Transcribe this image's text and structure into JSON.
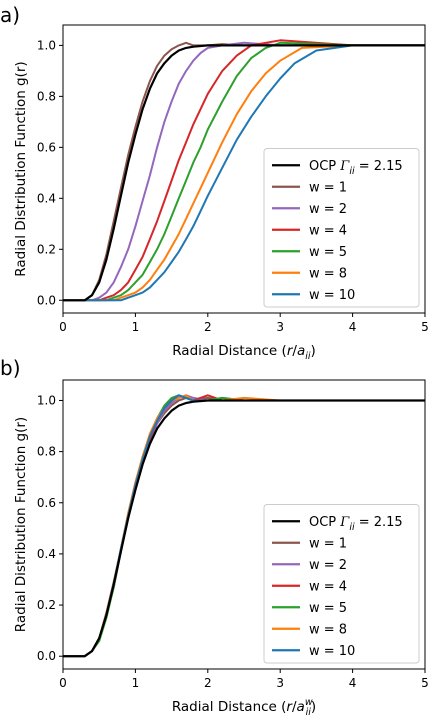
{
  "chart_data": [
    {
      "type": "line",
      "panel_label": "a)",
      "xlabel_prefix": "Radial Distance (",
      "xlabel_var": "r",
      "xlabel_slash": "/",
      "xlabel_a": "a",
      "xlabel_sub": "ii",
      "xlabel_sup": "",
      "xlabel_suffix": ")",
      "ylabel": "Radial Distribution Function g(r)",
      "xlim": [
        0,
        5
      ],
      "ylim": [
        -0.05,
        1.08
      ],
      "xticks": [
        "0",
        "1",
        "2",
        "3",
        "4",
        "5"
      ],
      "yticks": [
        "0.0",
        "0.2",
        "0.4",
        "0.6",
        "0.8",
        "1.0"
      ],
      "legend_position": "lower-right",
      "reference": {
        "name": "OCP",
        "gamma_symbol": "Γ",
        "gamma_sub": "ii",
        "gamma_value": "= 2.15",
        "color": "#000000",
        "x": [
          0,
          0.3,
          0.4,
          0.5,
          0.6,
          0.7,
          0.8,
          0.9,
          1.0,
          1.1,
          1.2,
          1.3,
          1.4,
          1.5,
          1.6,
          1.7,
          1.8,
          2.0,
          2.2,
          2.5,
          3.0,
          4.0,
          5.0
        ],
        "y": [
          0,
          0.0,
          0.02,
          0.07,
          0.16,
          0.28,
          0.41,
          0.54,
          0.65,
          0.75,
          0.83,
          0.89,
          0.93,
          0.96,
          0.98,
          0.99,
          0.995,
          1.0,
          1.0,
          1.0,
          1.0,
          1.0,
          1.0
        ]
      },
      "series": [
        {
          "name": "w = 1",
          "color": "#8c564b",
          "x": [
            0,
            0.3,
            0.4,
            0.5,
            0.6,
            0.7,
            0.8,
            0.9,
            1.0,
            1.1,
            1.2,
            1.3,
            1.4,
            1.5,
            1.6,
            1.7,
            1.8,
            2.0,
            2.2,
            2.5,
            3.0,
            4.0,
            5.0
          ],
          "y": [
            0,
            0.0,
            0.02,
            0.08,
            0.18,
            0.31,
            0.44,
            0.57,
            0.68,
            0.78,
            0.86,
            0.92,
            0.96,
            0.985,
            1.0,
            1.01,
            1.0,
            1.0,
            1.005,
            1.0,
            1.0,
            1.0,
            1.0
          ]
        },
        {
          "name": "w = 2",
          "color": "#9467bd",
          "x": [
            0,
            0.4,
            0.5,
            0.6,
            0.7,
            0.8,
            0.9,
            1.0,
            1.1,
            1.2,
            1.3,
            1.4,
            1.5,
            1.6,
            1.7,
            1.8,
            1.9,
            2.0,
            2.2,
            2.5,
            3.0,
            4.0,
            5.0
          ],
          "y": [
            0,
            0.0,
            0.01,
            0.03,
            0.07,
            0.13,
            0.2,
            0.29,
            0.39,
            0.49,
            0.6,
            0.7,
            0.78,
            0.85,
            0.9,
            0.94,
            0.97,
            0.99,
            1.0,
            1.01,
            1.0,
            1.0,
            1.0
          ]
        },
        {
          "name": "w = 4",
          "color": "#d62728",
          "x": [
            0,
            0.5,
            0.6,
            0.7,
            0.8,
            0.9,
            1.0,
            1.1,
            1.2,
            1.3,
            1.4,
            1.5,
            1.6,
            1.7,
            1.8,
            1.9,
            2.0,
            2.2,
            2.4,
            2.6,
            3.0,
            4.0,
            5.0
          ],
          "y": [
            0,
            0.0,
            0.01,
            0.02,
            0.04,
            0.07,
            0.12,
            0.17,
            0.24,
            0.31,
            0.39,
            0.47,
            0.55,
            0.62,
            0.69,
            0.75,
            0.81,
            0.9,
            0.96,
            1.0,
            1.02,
            1.0,
            1.0
          ]
        },
        {
          "name": "w = 5",
          "color": "#2ca02c",
          "x": [
            0,
            0.6,
            0.7,
            0.8,
            0.9,
            1.0,
            1.1,
            1.2,
            1.3,
            1.4,
            1.5,
            1.6,
            1.7,
            1.8,
            1.9,
            2.0,
            2.2,
            2.4,
            2.6,
            2.8,
            3.0,
            4.0,
            5.0
          ],
          "y": [
            0,
            0.0,
            0.01,
            0.02,
            0.04,
            0.07,
            0.1,
            0.15,
            0.2,
            0.26,
            0.33,
            0.4,
            0.47,
            0.54,
            0.6,
            0.67,
            0.78,
            0.88,
            0.95,
            0.99,
            1.01,
            1.0,
            1.0
          ]
        },
        {
          "name": "w = 8",
          "color": "#ff7f0e",
          "x": [
            0,
            0.7,
            0.8,
            0.9,
            1.0,
            1.1,
            1.2,
            1.3,
            1.4,
            1.5,
            1.6,
            1.7,
            1.8,
            1.9,
            2.0,
            2.2,
            2.4,
            2.6,
            2.8,
            3.0,
            3.3,
            4.0,
            5.0
          ],
          "y": [
            0,
            0.0,
            0.01,
            0.02,
            0.03,
            0.05,
            0.08,
            0.12,
            0.16,
            0.21,
            0.26,
            0.32,
            0.38,
            0.44,
            0.5,
            0.62,
            0.73,
            0.82,
            0.89,
            0.94,
            0.99,
            1.0,
            1.0
          ]
        },
        {
          "name": "w = 10",
          "color": "#1f77b4",
          "x": [
            0,
            0.8,
            0.9,
            1.0,
            1.1,
            1.2,
            1.3,
            1.4,
            1.5,
            1.6,
            1.7,
            1.8,
            1.9,
            2.0,
            2.2,
            2.4,
            2.6,
            2.8,
            3.0,
            3.2,
            3.5,
            4.0,
            5.0
          ],
          "y": [
            0,
            0.0,
            0.01,
            0.02,
            0.03,
            0.05,
            0.08,
            0.11,
            0.15,
            0.19,
            0.24,
            0.29,
            0.35,
            0.41,
            0.52,
            0.63,
            0.72,
            0.8,
            0.87,
            0.93,
            0.98,
            1.0,
            1.0
          ]
        }
      ]
    },
    {
      "type": "line",
      "panel_label": "b)",
      "xlabel_prefix": "Radial Distance (",
      "xlabel_var": "r",
      "xlabel_slash": "/",
      "xlabel_a": "a",
      "xlabel_sub": "ii",
      "xlabel_sup": "w",
      "xlabel_suffix": ")",
      "ylabel": "Radial Distribution Function g(r)",
      "xlim": [
        0,
        5
      ],
      "ylim": [
        -0.05,
        1.08
      ],
      "xticks": [
        "0",
        "1",
        "2",
        "3",
        "4",
        "5"
      ],
      "yticks": [
        "0.0",
        "0.2",
        "0.4",
        "0.6",
        "0.8",
        "1.0"
      ],
      "legend_position": "lower-right",
      "reference": {
        "name": "OCP",
        "gamma_symbol": "Γ",
        "gamma_sub": "ii",
        "gamma_value": "= 2.15",
        "color": "#000000",
        "x": [
          0,
          0.3,
          0.4,
          0.5,
          0.6,
          0.7,
          0.8,
          0.9,
          1.0,
          1.1,
          1.2,
          1.3,
          1.4,
          1.5,
          1.6,
          1.7,
          1.8,
          2.0,
          2.2,
          2.5,
          3.0,
          4.0,
          5.0
        ],
        "y": [
          0,
          0.0,
          0.02,
          0.07,
          0.16,
          0.28,
          0.41,
          0.54,
          0.65,
          0.75,
          0.83,
          0.89,
          0.93,
          0.96,
          0.98,
          0.99,
          0.995,
          1.0,
          1.0,
          1.0,
          1.0,
          1.0,
          1.0
        ]
      },
      "series": [
        {
          "name": "w = 1",
          "color": "#8c564b",
          "x": [
            0,
            0.3,
            0.4,
            0.5,
            0.6,
            0.7,
            0.8,
            0.9,
            1.0,
            1.1,
            1.2,
            1.3,
            1.4,
            1.5,
            1.6,
            1.7,
            1.8,
            2.0,
            2.2,
            2.5,
            3.0,
            4.0,
            5.0
          ],
          "y": [
            0,
            0.0,
            0.02,
            0.07,
            0.17,
            0.29,
            0.42,
            0.55,
            0.66,
            0.76,
            0.84,
            0.91,
            0.95,
            0.98,
            1.0,
            1.01,
            1.0,
            1.01,
            1.0,
            1.0,
            1.0,
            1.0,
            1.0
          ]
        },
        {
          "name": "w = 2",
          "color": "#9467bd",
          "x": [
            0,
            0.3,
            0.4,
            0.5,
            0.6,
            0.7,
            0.8,
            0.9,
            1.0,
            1.1,
            1.2,
            1.3,
            1.4,
            1.5,
            1.6,
            1.7,
            1.8,
            2.0,
            2.2,
            2.5,
            3.0,
            4.0,
            5.0
          ],
          "y": [
            0,
            0.0,
            0.02,
            0.06,
            0.16,
            0.28,
            0.42,
            0.55,
            0.67,
            0.77,
            0.85,
            0.91,
            0.96,
            0.99,
            1.01,
            1.02,
            1.01,
            1.0,
            1.01,
            1.0,
            1.0,
            1.0,
            1.0
          ]
        },
        {
          "name": "w = 4",
          "color": "#d62728",
          "x": [
            0,
            0.3,
            0.4,
            0.5,
            0.6,
            0.7,
            0.8,
            0.9,
            1.0,
            1.1,
            1.2,
            1.3,
            1.4,
            1.5,
            1.6,
            1.7,
            1.8,
            2.0,
            2.2,
            2.5,
            3.0,
            4.0,
            5.0
          ],
          "y": [
            0,
            0.0,
            0.02,
            0.07,
            0.16,
            0.27,
            0.41,
            0.54,
            0.66,
            0.76,
            0.85,
            0.92,
            0.97,
            1.0,
            1.02,
            1.01,
            1.0,
            1.02,
            1.0,
            1.0,
            1.0,
            1.0,
            1.0
          ]
        },
        {
          "name": "w = 5",
          "color": "#2ca02c",
          "x": [
            0,
            0.3,
            0.4,
            0.5,
            0.6,
            0.7,
            0.8,
            0.9,
            1.0,
            1.1,
            1.2,
            1.3,
            1.4,
            1.5,
            1.6,
            1.7,
            1.8,
            2.0,
            2.2,
            2.5,
            3.0,
            4.0,
            5.0
          ],
          "y": [
            0,
            0.0,
            0.02,
            0.06,
            0.15,
            0.27,
            0.41,
            0.55,
            0.67,
            0.78,
            0.86,
            0.93,
            0.98,
            1.01,
            1.02,
            1.01,
            1.0,
            1.0,
            1.01,
            1.0,
            1.0,
            1.0,
            1.0
          ]
        },
        {
          "name": "w = 8",
          "color": "#ff7f0e",
          "x": [
            0,
            0.3,
            0.4,
            0.5,
            0.6,
            0.7,
            0.8,
            0.9,
            1.0,
            1.1,
            1.2,
            1.3,
            1.4,
            1.5,
            1.6,
            1.7,
            1.8,
            2.0,
            2.2,
            2.5,
            3.0,
            4.0,
            5.0
          ],
          "y": [
            0,
            0.0,
            0.02,
            0.07,
            0.16,
            0.28,
            0.42,
            0.56,
            0.68,
            0.78,
            0.87,
            0.93,
            0.97,
            1.0,
            1.01,
            1.02,
            1.0,
            1.0,
            1.0,
            1.01,
            1.0,
            1.0,
            1.0
          ]
        },
        {
          "name": "w = 10",
          "color": "#1f77b4",
          "x": [
            0,
            0.3,
            0.4,
            0.5,
            0.6,
            0.7,
            0.8,
            0.9,
            1.0,
            1.1,
            1.2,
            1.3,
            1.4,
            1.5,
            1.6,
            1.7,
            1.8,
            2.0,
            2.2,
            2.5,
            3.0,
            4.0,
            5.0
          ],
          "y": [
            0,
            0.0,
            0.02,
            0.07,
            0.16,
            0.28,
            0.42,
            0.55,
            0.67,
            0.77,
            0.86,
            0.92,
            0.97,
            1.0,
            1.02,
            1.01,
            1.0,
            1.0,
            1.0,
            1.0,
            1.0,
            1.0,
            1.0
          ]
        }
      ]
    }
  ]
}
